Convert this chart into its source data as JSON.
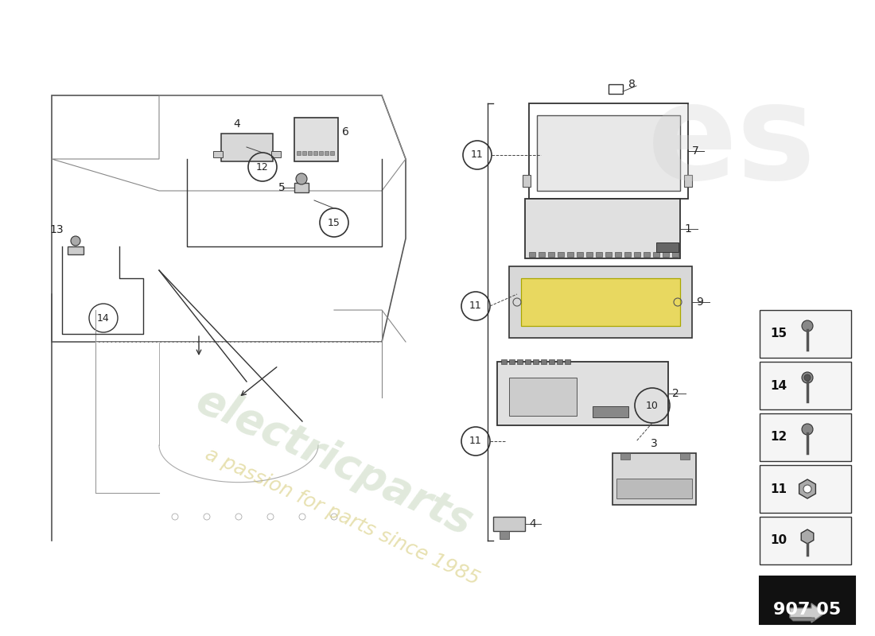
{
  "bg_color": "#ffffff",
  "title": "",
  "part_number": "907 05",
  "watermark_line1": "electricparts",
  "watermark_line2": "a passion for parts since 1985",
  "parts_table": [
    {
      "num": 15,
      "type": "screw_small"
    },
    {
      "num": 14,
      "type": "screw_medium"
    },
    {
      "num": 12,
      "type": "screw_bolt"
    },
    {
      "num": 11,
      "type": "nut"
    },
    {
      "num": 10,
      "type": "screw_hex"
    }
  ]
}
